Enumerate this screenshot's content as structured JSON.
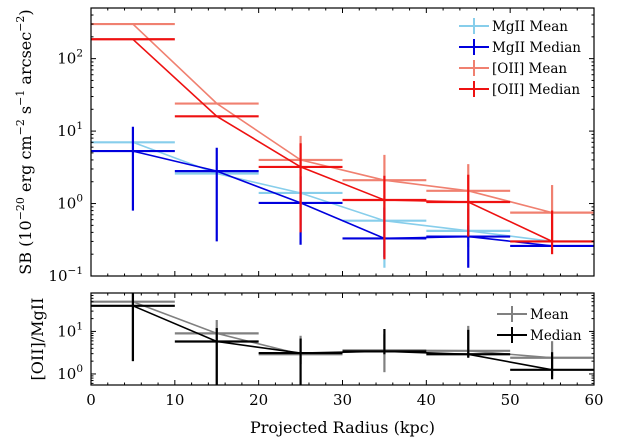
{
  "chart_data": [
    {
      "type": "line",
      "panel": "top",
      "ylabel": "SB (10$^{-20}$ erg cm$^{-2}$ s$^{-1}$ arcsec$^{-2}$)",
      "ylabel_parts": {
        "prefix": "SB (10",
        "exp1": "−20",
        "mid1": " erg cm",
        "exp2": "−2",
        "mid2": " s",
        "exp3": "−1",
        "mid3": " arcsec",
        "exp4": "−2",
        "suffix": ")"
      },
      "xlim": [
        0,
        60
      ],
      "ylim": [
        0.1,
        500
      ],
      "yscale": "log",
      "yticks": [
        0.1,
        1,
        10,
        100
      ],
      "ytick_labels": [
        {
          "base": "10",
          "exp": "−1"
        },
        {
          "base": "10",
          "exp": "0"
        },
        {
          "base": "10",
          "exp": "1"
        },
        {
          "base": "10",
          "exp": "2"
        }
      ],
      "legend_placement": "upper right",
      "series": [
        {
          "name": "MgII Mean",
          "color": "#87ceeb",
          "x": [
            5,
            15,
            25,
            35,
            45,
            55
          ],
          "y": [
            7.0,
            2.6,
            1.4,
            0.58,
            0.42,
            0.3
          ],
          "yerr_lo": [
            7.0,
            2.6,
            1.4,
            0.45,
            0.17,
            0.3
          ],
          "yerr_hi": [
            7.0,
            2.6,
            1.4,
            0.72,
            0.6,
            0.3
          ]
        },
        {
          "name": "MgII Median",
          "color": "#0000dd",
          "x": [
            5,
            15,
            25,
            35,
            45,
            55
          ],
          "y": [
            5.3,
            2.8,
            1.02,
            0.33,
            0.35,
            0.26
          ],
          "yerr_lo": [
            4.5,
            2.5,
            0.75,
            0.15,
            0.22,
            0.26
          ],
          "yerr_hi": [
            6.2,
            3.1,
            1.35,
            0.55,
            0.5,
            0.26
          ]
        },
        {
          "name": "[OII] Mean",
          "color": "#f08070",
          "x": [
            5,
            15,
            25,
            35,
            45,
            55
          ],
          "y": [
            300,
            24,
            4.0,
            2.1,
            1.5,
            0.75
          ],
          "yerr_lo": [
            300,
            24,
            3.5,
            1.6,
            1.0,
            0.45
          ],
          "yerr_hi": [
            300,
            24,
            4.6,
            2.6,
            2.0,
            1.05
          ]
        },
        {
          "name": "[OII] Median",
          "color": "#ee1111",
          "x": [
            5,
            15,
            25,
            35,
            45,
            55
          ],
          "y": [
            185,
            16,
            3.2,
            1.12,
            1.05,
            0.3
          ],
          "yerr_lo": [
            185,
            16,
            2.8,
            0.95,
            0.7,
            0.1
          ],
          "yerr_hi": [
            185,
            16,
            3.6,
            1.3,
            1.45,
            0.5
          ]
        }
      ]
    },
    {
      "type": "line",
      "panel": "bottom",
      "xlabel": "Projected Radius (kpc)",
      "ylabel": "[OII]/MgII",
      "xlim": [
        0,
        60
      ],
      "ylim": [
        0.55,
        80
      ],
      "yscale": "log",
      "xticks": [
        0,
        10,
        20,
        30,
        40,
        50,
        60
      ],
      "yticks": [
        1,
        10
      ],
      "ytick_labels": [
        {
          "base": "10",
          "exp": "0"
        },
        {
          "base": "10",
          "exp": "1"
        }
      ],
      "legend_placement": "upper right",
      "series": [
        {
          "name": "Mean",
          "color": "#808080",
          "x": [
            5,
            15,
            25,
            35,
            45,
            55
          ],
          "y": [
            50,
            9.0,
            2.9,
            3.6,
            3.5,
            2.4
          ],
          "yerr_lo": [
            48,
            8.5,
            1.2,
            2.5,
            1.0,
            1.5
          ],
          "yerr_hi": [
            52,
            9.5,
            5.0,
            5.0,
            10.0,
            3.5
          ]
        },
        {
          "name": "Median",
          "color": "#000000",
          "x": [
            5,
            15,
            25,
            35,
            45,
            55
          ],
          "y": [
            40,
            5.8,
            3.1,
            3.4,
            2.9,
            1.25
          ],
          "yerr_lo": [
            38,
            5.4,
            2.6,
            0.5,
            0.5,
            0.5
          ],
          "yerr_hi": [
            42,
            6.2,
            3.7,
            8.0,
            8.0,
            2.0
          ]
        }
      ]
    }
  ]
}
